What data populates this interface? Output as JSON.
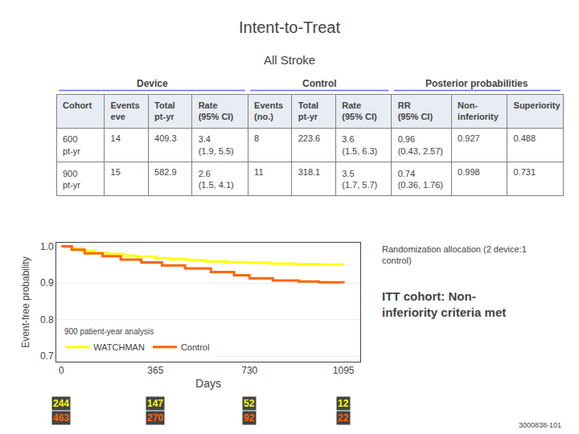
{
  "chart_data": {
    "type": "step",
    "title": "Intent-to-Treat",
    "subtitle": "All Stroke",
    "xlabel": "Days",
    "ylabel": "Event-free probability",
    "series": [
      {
        "name": "WATCHMAN",
        "color": "#ffff00",
        "x": [
          0,
          40,
          80,
          130,
          180,
          240,
          290,
          365,
          420,
          490,
          560,
          640,
          730,
          810,
          900,
          1000,
          1095
        ],
        "values": [
          1.0,
          0.994,
          0.988,
          0.983,
          0.979,
          0.975,
          0.972,
          0.968,
          0.965,
          0.962,
          0.959,
          0.957,
          0.955,
          0.953,
          0.951,
          0.95,
          0.949
        ]
      },
      {
        "name": "Control",
        "color": "#ff6600",
        "x": [
          0,
          40,
          90,
          160,
          230,
          310,
          390,
          480,
          580,
          670,
          730,
          820,
          920,
          1000,
          1095
        ],
        "values": [
          1.0,
          0.991,
          0.981,
          0.973,
          0.964,
          0.956,
          0.948,
          0.94,
          0.93,
          0.921,
          0.913,
          0.907,
          0.904,
          0.902,
          0.901
        ]
      }
    ],
    "xlim": [
      -20,
      1160
    ],
    "xticks": [
      0,
      365,
      730,
      1095
    ],
    "ylim": [
      0.685,
      1.01
    ],
    "yticks": [
      0.7,
      0.8,
      0.9,
      {
        "value": 1.0,
        "label": "1.0"
      }
    ],
    "grid": "y",
    "legend": "lower left",
    "footnote": "900 patient-year analysis",
    "notes": [
      "Randomization allocation (2 device:1\ncontrol)",
      "ITT cohort: Non-\ninferiority criteria met"
    ],
    "watermark": "3000838-101",
    "at_risk": {
      "x": [
        0,
        365,
        730,
        1095
      ],
      "rows": [
        {
          "color": "#ffff00",
          "values": [
            244,
            147,
            52,
            12
          ]
        },
        {
          "color": "#ff6600",
          "values": [
            463,
            270,
            92,
            22
          ]
        }
      ]
    },
    "table": {
      "sections": [
        "Device",
        "Control",
        "Posterior probabilities"
      ],
      "columns": [
        "Cohort",
        "Events\neve",
        "Total\npt-yr",
        "Rate\n(95% CI)",
        "Events\n(no.)",
        "Total\npt-yr",
        "Rate\n(95% CI)",
        "RR\n(95% CI)",
        "Non-\ninferiority",
        "Superiority"
      ],
      "rows": [
        [
          "600\npt-yr",
          "14",
          "409.3",
          "3.4\n(1.9, 5.5)",
          "8",
          "223.6",
          "3.6\n(1.5, 6.3)",
          "0.96\n(0.43, 2.57)",
          "0.927",
          "0.488"
        ],
        [
          "900\npt-yr",
          "15",
          "582.9",
          "2.6\n(1.5, 4.1)",
          "11",
          "318.1",
          "3.5\n(1.7, 5.7)",
          "0.74\n(0.36, 1.76)",
          "0.998",
          "0.731"
        ]
      ]
    }
  }
}
